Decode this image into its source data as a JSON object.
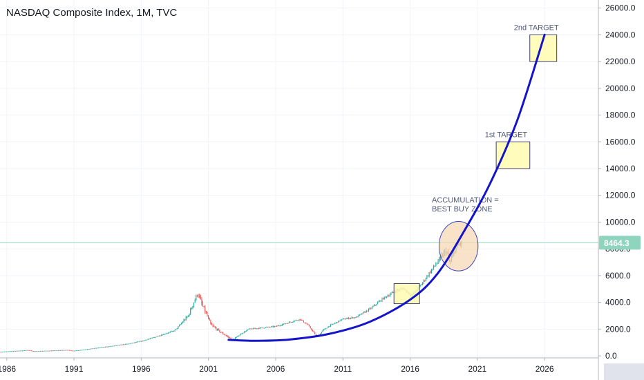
{
  "chart_data": {
    "type": "candlestick",
    "title": "NASDAQ Composite Index, 1M, TVC",
    "x_range": [
      1985.5,
      2030.0
    ],
    "y_range": [
      -150,
      26600
    ],
    "x_ticks": [
      1986,
      1991,
      1996,
      2001,
      2006,
      2011,
      2016,
      2021,
      2026
    ],
    "y_ticks": [
      0,
      2000,
      4000,
      6000,
      8000,
      10000,
      12000,
      14000,
      16000,
      18000,
      20000,
      22000,
      24000,
      26000
    ],
    "y_tick_labels": [
      "0.0",
      "2000.0",
      "4000.0",
      "6000.0",
      "8000.0",
      "10000.0",
      "12000.0",
      "14000.0",
      "16000.0",
      "18000.0",
      "20000.0",
      "22000.0",
      "24000.0",
      "26000.0"
    ],
    "last_price": 8464.3,
    "last_price_label": "8464.3",
    "price_anchors": [
      [
        1985.5,
        300
      ],
      [
        1987.6,
        430
      ],
      [
        1988.0,
        350
      ],
      [
        1990.5,
        440
      ],
      [
        1991.0,
        380
      ],
      [
        1994.0,
        760
      ],
      [
        1995.0,
        900
      ],
      [
        1996.0,
        1100
      ],
      [
        1997.0,
        1400
      ],
      [
        1998.5,
        1900
      ],
      [
        1999.5,
        3000
      ],
      [
        2000.2,
        4700
      ],
      [
        2000.5,
        3900
      ],
      [
        2001.2,
        2300
      ],
      [
        2002.0,
        1700
      ],
      [
        2002.8,
        1200
      ],
      [
        2003.5,
        1700
      ],
      [
        2004.0,
        2000
      ],
      [
        2006.0,
        2200
      ],
      [
        2007.8,
        2750
      ],
      [
        2008.4,
        2300
      ],
      [
        2009.1,
        1400
      ],
      [
        2009.5,
        1900
      ],
      [
        2010.0,
        2250
      ],
      [
        2011.0,
        2750
      ],
      [
        2012.0,
        2900
      ],
      [
        2013.0,
        3500
      ],
      [
        2014.0,
        4300
      ],
      [
        2015.0,
        4900
      ],
      [
        2015.5,
        5050
      ],
      [
        2016.1,
        4500
      ],
      [
        2016.8,
        5300
      ],
      [
        2017.5,
        6300
      ],
      [
        2018.7,
        7900
      ],
      [
        2018.95,
        6900
      ],
      [
        2019.3,
        7900
      ],
      [
        2019.6,
        8300
      ],
      [
        2019.9,
        8464
      ]
    ],
    "horizontal_line": {
      "value": 8464.3,
      "color": "#8fd4bd"
    },
    "curve": {
      "color": "#1414c8",
      "points": [
        [
          2002.5,
          1200
        ],
        [
          2004.5,
          1130
        ],
        [
          2007.0,
          1220
        ],
        [
          2010.0,
          1650
        ],
        [
          2013.0,
          2550
        ],
        [
          2016.0,
          4200
        ],
        [
          2018.0,
          6100
        ],
        [
          2020.0,
          9300
        ],
        [
          2022.0,
          13000
        ],
        [
          2024.0,
          17700
        ],
        [
          2026.0,
          24000
        ]
      ]
    },
    "annotations": [
      {
        "label": "2nd TARGET",
        "x0": 2024.9,
        "x1": 2026.9,
        "y0": 22000,
        "y1": 24000
      },
      {
        "label": "1st TARGET",
        "x0": 2022.4,
        "x1": 2024.9,
        "y0": 14000,
        "y1": 16000
      },
      {
        "label": "",
        "x0": 2014.8,
        "x1": 2016.7,
        "y0": 3900,
        "y1": 5400
      }
    ],
    "ellipse": {
      "cx": 2019.6,
      "cy": 8200,
      "rx": 1.45,
      "ry": 1850,
      "label_lines": [
        "ACCUMULATION =",
        "BEST BUY ZONE"
      ]
    },
    "colors": {
      "up": "#26a69a",
      "down": "#ef5350",
      "grid": "#f0f3fa",
      "axis_text": "#131722",
      "target_fill": "#fffcb0",
      "target_border": "#3f3f6e",
      "ellipse_fill": "#f7d7b0",
      "annotation_text": "#50597a"
    }
  }
}
